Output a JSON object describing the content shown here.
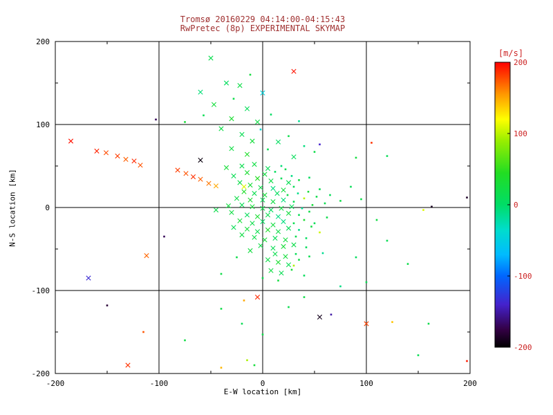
{
  "title": {
    "line1": "Tromsø 20160229 04:14:00-04:15:43",
    "line2": "RwPretec (8p) EXPERIMENTAL SKYMAP"
  },
  "colors": {
    "title": "#a03030",
    "axis": "#000000",
    "colorbar_label": "#cc2222"
  },
  "chart_data": {
    "type": "scatter",
    "title": "Tromsø 20160229 04:14:00-04:15:43",
    "subtitle": "RwPretec (8p) EXPERIMENTAL SKYMAP",
    "xlabel": "E-W location [km]",
    "ylabel": "N-S location [km]",
    "xlim": [
      -200,
      200
    ],
    "ylim": [
      -200,
      200
    ],
    "xticks": [
      -200,
      -100,
      0,
      100,
      200
    ],
    "yticks": [
      -200,
      -100,
      0,
      100,
      200
    ],
    "grid": [
      -100,
      0,
      100
    ],
    "legend_position": "right-colorbar",
    "colorbar": {
      "label": "[m/s]",
      "ticks": [
        200,
        100,
        0,
        -100,
        -200
      ],
      "min": -200,
      "max": 200,
      "stops": [
        [
          200,
          "#ff0000"
        ],
        [
          155,
          "#ff9900"
        ],
        [
          120,
          "#ffff00"
        ],
        [
          90,
          "#99ee00"
        ],
        [
          45,
          "#22dd22"
        ],
        [
          0,
          "#00dd66"
        ],
        [
          -35,
          "#00ddcc"
        ],
        [
          -70,
          "#00bbff"
        ],
        [
          -100,
          "#0066ff"
        ],
        [
          -140,
          "#4422cc"
        ],
        [
          -175,
          "#330044"
        ],
        [
          -200,
          "#000000"
        ]
      ]
    },
    "marker_legend": {
      "x": "cross marker",
      ".": "dot marker"
    },
    "points": [
      [
        -50,
        180,
        15,
        "x"
      ],
      [
        30,
        164,
        195,
        "x"
      ],
      [
        -12,
        160,
        25,
        "."
      ],
      [
        -35,
        150,
        5,
        "x"
      ],
      [
        -22,
        147,
        20,
        "x"
      ],
      [
        -60,
        139,
        -5,
        "x"
      ],
      [
        0,
        138,
        -45,
        "x"
      ],
      [
        -28,
        131,
        18,
        "."
      ],
      [
        -47,
        124,
        28,
        "x"
      ],
      [
        -15,
        119,
        8,
        "x"
      ],
      [
        -57,
        111,
        12,
        "."
      ],
      [
        -30,
        107,
        35,
        "x"
      ],
      [
        8,
        112,
        2,
        "."
      ],
      [
        -5,
        103,
        22,
        "x"
      ],
      [
        -75,
        103,
        30,
        "."
      ],
      [
        35,
        104,
        -15,
        "."
      ],
      [
        -103,
        106,
        -170,
        "."
      ],
      [
        -40,
        95,
        20,
        "x"
      ],
      [
        -2,
        94,
        -40,
        "."
      ],
      [
        -20,
        88,
        12,
        "x"
      ],
      [
        25,
        86,
        18,
        "."
      ],
      [
        55,
        76,
        -140,
        "."
      ],
      [
        105,
        78,
        185,
        "."
      ],
      [
        -10,
        80,
        28,
        "x"
      ],
      [
        15,
        79,
        4,
        "x"
      ],
      [
        40,
        74,
        -8,
        "."
      ],
      [
        -30,
        71,
        22,
        "x"
      ],
      [
        5,
        70,
        12,
        "."
      ],
      [
        50,
        67,
        18,
        "."
      ],
      [
        90,
        60,
        25,
        "."
      ],
      [
        120,
        62,
        10,
        "."
      ],
      [
        -185,
        80,
        195,
        "x"
      ],
      [
        -160,
        68,
        190,
        "x"
      ],
      [
        -151,
        66,
        178,
        "x"
      ],
      [
        -140,
        62,
        182,
        "x"
      ],
      [
        -132,
        58,
        172,
        "x"
      ],
      [
        -124,
        56,
        188,
        "x"
      ],
      [
        -118,
        51,
        176,
        "x"
      ],
      [
        -60,
        57,
        -195,
        "x"
      ],
      [
        -82,
        45,
        182,
        "x"
      ],
      [
        -74,
        41,
        176,
        "x"
      ],
      [
        -67,
        37,
        186,
        "x"
      ],
      [
        -60,
        34,
        172,
        "x"
      ],
      [
        -52,
        29,
        165,
        "x"
      ],
      [
        -45,
        26,
        150,
        "x"
      ],
      [
        -15,
        64,
        40,
        "x"
      ],
      [
        30,
        61,
        8,
        "x"
      ],
      [
        -35,
        48,
        30,
        "x"
      ],
      [
        -20,
        50,
        15,
        "x"
      ],
      [
        -8,
        52,
        22,
        "x"
      ],
      [
        5,
        47,
        10,
        "x"
      ],
      [
        18,
        50,
        -5,
        "."
      ],
      [
        -15,
        42,
        35,
        "x"
      ],
      [
        -28,
        38,
        12,
        "x"
      ],
      [
        2,
        40,
        25,
        "x"
      ],
      [
        12,
        43,
        5,
        "."
      ],
      [
        22,
        46,
        15,
        "."
      ],
      [
        -5,
        35,
        45,
        "x"
      ],
      [
        8,
        32,
        20,
        "x"
      ],
      [
        18,
        35,
        8,
        "."
      ],
      [
        28,
        38,
        -10,
        "."
      ],
      [
        -22,
        30,
        18,
        "x"
      ],
      [
        -12,
        27,
        30,
        "x"
      ],
      [
        -18,
        25,
        110,
        "x"
      ],
      [
        25,
        30,
        12,
        "x"
      ],
      [
        35,
        33,
        22,
        "."
      ],
      [
        45,
        36,
        5,
        "."
      ],
      [
        -2,
        24,
        18,
        "x"
      ],
      [
        10,
        23,
        -8,
        "x"
      ],
      [
        20,
        21,
        25,
        "x"
      ],
      [
        30,
        25,
        10,
        "."
      ],
      [
        -18,
        19,
        40,
        "x"
      ],
      [
        -8,
        17,
        15,
        "x"
      ],
      [
        2,
        15,
        28,
        "x"
      ],
      [
        14,
        17,
        5,
        "x"
      ],
      [
        24,
        15,
        18,
        "."
      ],
      [
        34,
        17,
        -12,
        "."
      ],
      [
        44,
        19,
        30,
        "."
      ],
      [
        55,
        22,
        12,
        "."
      ],
      [
        -25,
        11,
        20,
        "x"
      ],
      [
        -12,
        9,
        35,
        "x"
      ],
      [
        0,
        9,
        10,
        "x"
      ],
      [
        10,
        7,
        22,
        "x"
      ],
      [
        20,
        9,
        -5,
        "x"
      ],
      [
        30,
        7,
        15,
        "."
      ],
      [
        40,
        11,
        100,
        "."
      ],
      [
        52,
        13,
        18,
        "."
      ],
      [
        65,
        15,
        8,
        "."
      ],
      [
        -33,
        2,
        25,
        "x"
      ],
      [
        -20,
        3,
        12,
        "x"
      ],
      [
        -10,
        1,
        30,
        "x"
      ],
      [
        0,
        -1,
        18,
        "x"
      ],
      [
        8,
        -3,
        5,
        "x"
      ],
      [
        18,
        -1,
        22,
        "x"
      ],
      [
        28,
        1,
        10,
        "x"
      ],
      [
        38,
        -1,
        -15,
        "."
      ],
      [
        48,
        3,
        28,
        "."
      ],
      [
        60,
        5,
        15,
        "."
      ],
      [
        75,
        8,
        20,
        "."
      ],
      [
        -45,
        -3,
        18,
        "x"
      ],
      [
        -30,
        -6,
        22,
        "x"
      ],
      [
        -15,
        -9,
        8,
        "x"
      ],
      [
        -5,
        -11,
        35,
        "x"
      ],
      [
        5,
        -9,
        15,
        "x"
      ],
      [
        15,
        -11,
        -10,
        "x"
      ],
      [
        25,
        -7,
        25,
        "x"
      ],
      [
        35,
        -9,
        12,
        "."
      ],
      [
        45,
        -5,
        20,
        "."
      ],
      [
        -22,
        -16,
        30,
        "x"
      ],
      [
        -10,
        -19,
        18,
        "x"
      ],
      [
        0,
        -17,
        5,
        "x"
      ],
      [
        10,
        -21,
        25,
        "x"
      ],
      [
        20,
        -17,
        -8,
        "x"
      ],
      [
        30,
        -19,
        15,
        "."
      ],
      [
        40,
        -15,
        35,
        "."
      ],
      [
        50,
        -19,
        10,
        "."
      ],
      [
        62,
        -12,
        18,
        "."
      ],
      [
        -28,
        -24,
        12,
        "x"
      ],
      [
        -15,
        -26,
        28,
        "x"
      ],
      [
        -5,
        -29,
        15,
        "x"
      ],
      [
        5,
        -27,
        40,
        "x"
      ],
      [
        15,
        -29,
        20,
        "x"
      ],
      [
        25,
        -25,
        8,
        "x"
      ],
      [
        35,
        -27,
        -12,
        "."
      ],
      [
        47,
        -23,
        22,
        "."
      ],
      [
        55,
        -30,
        105,
        "."
      ],
      [
        -8,
        -36,
        18,
        "x"
      ],
      [
        2,
        -39,
        30,
        "x"
      ],
      [
        12,
        -37,
        10,
        "x"
      ],
      [
        22,
        -39,
        25,
        "x"
      ],
      [
        32,
        -35,
        15,
        "."
      ],
      [
        42,
        -37,
        5,
        "."
      ],
      [
        -20,
        -33,
        22,
        "x"
      ],
      [
        -2,
        -46,
        20,
        "x"
      ],
      [
        10,
        -49,
        12,
        "x"
      ],
      [
        20,
        -47,
        30,
        "x"
      ],
      [
        30,
        -45,
        18,
        "x"
      ],
      [
        42,
        -48,
        8,
        "."
      ],
      [
        -12,
        -52,
        25,
        "x"
      ],
      [
        12,
        -56,
        15,
        "x"
      ],
      [
        22,
        -59,
        28,
        "x"
      ],
      [
        32,
        -56,
        10,
        "."
      ],
      [
        5,
        -63,
        20,
        "x"
      ],
      [
        15,
        -66,
        35,
        "x"
      ],
      [
        25,
        -69,
        12,
        "x"
      ],
      [
        35,
        -63,
        22,
        "."
      ],
      [
        45,
        -59,
        15,
        "."
      ],
      [
        58,
        -55,
        -15,
        "."
      ],
      [
        30,
        -70,
        95,
        "."
      ],
      [
        -25,
        -60,
        18,
        "."
      ],
      [
        8,
        -76,
        22,
        "x"
      ],
      [
        18,
        -79,
        12,
        "x"
      ],
      [
        28,
        -75,
        30,
        "."
      ],
      [
        0,
        -85,
        15,
        "."
      ],
      [
        15,
        -88,
        25,
        "."
      ],
      [
        40,
        -82,
        8,
        "."
      ],
      [
        75,
        -95,
        -10,
        "."
      ],
      [
        100,
        -90,
        12,
        "."
      ],
      [
        -40,
        -80,
        20,
        "."
      ],
      [
        85,
        25,
        10,
        "."
      ],
      [
        95,
        10,
        18,
        "."
      ],
      [
        110,
        -15,
        22,
        "."
      ],
      [
        120,
        -40,
        12,
        "."
      ],
      [
        140,
        -68,
        18,
        "."
      ],
      [
        155,
        -3,
        110,
        "."
      ],
      [
        163,
        1,
        -190,
        "."
      ],
      [
        197,
        12,
        -185,
        "."
      ],
      [
        90,
        -60,
        5,
        "."
      ],
      [
        -5,
        -108,
        188,
        "x"
      ],
      [
        -18,
        -112,
        150,
        "."
      ],
      [
        -40,
        -122,
        20,
        "."
      ],
      [
        55,
        -132,
        -190,
        "x"
      ],
      [
        66,
        -129,
        -150,
        "."
      ],
      [
        100,
        -140,
        180,
        "x"
      ],
      [
        125,
        -138,
        140,
        "."
      ],
      [
        160,
        -140,
        18,
        "."
      ],
      [
        -20,
        -140,
        12,
        "."
      ],
      [
        0,
        -153,
        18,
        "."
      ],
      [
        -115,
        -150,
        175,
        "."
      ],
      [
        -150,
        -118,
        -180,
        "."
      ],
      [
        -168,
        -85,
        -135,
        "x"
      ],
      [
        -112,
        -58,
        170,
        "x"
      ],
      [
        -95,
        -35,
        -170,
        "."
      ],
      [
        -75,
        -160,
        22,
        "."
      ],
      [
        -130,
        -190,
        185,
        "x"
      ],
      [
        -40,
        -193,
        145,
        "."
      ],
      [
        -8,
        -190,
        28,
        "."
      ],
      [
        -15,
        -184,
        95,
        "."
      ],
      [
        197,
        -185,
        192,
        "."
      ],
      [
        150,
        -178,
        12,
        "."
      ],
      [
        25,
        -120,
        15,
        "."
      ],
      [
        40,
        -108,
        20,
        "."
      ]
    ]
  }
}
